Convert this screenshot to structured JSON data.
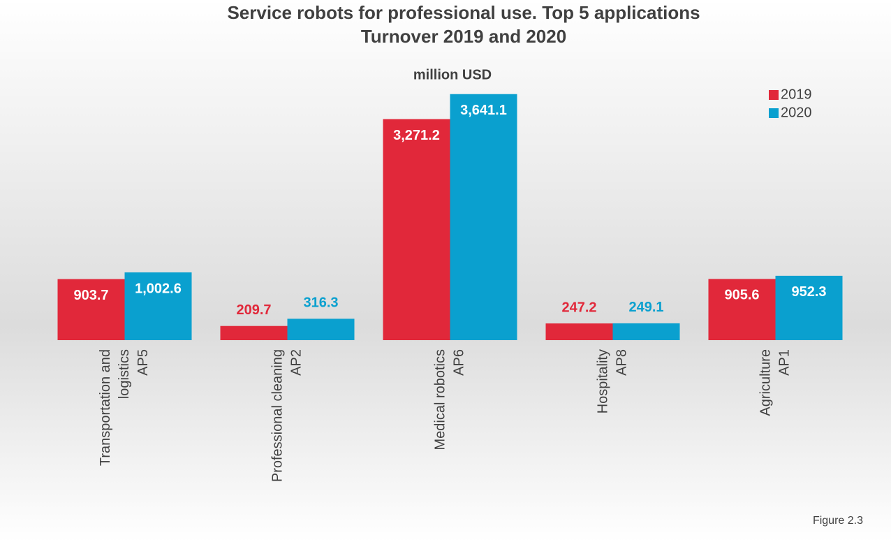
{
  "chart_data": {
    "type": "bar",
    "title": [
      "Service robots for professional use. Top 5 applications",
      "Turnover 2019 and 2020"
    ],
    "y_label": "million USD",
    "note": "Figure 2.3",
    "categories": [
      [
        "Transportation and",
        "logistics",
        "AP5"
      ],
      [
        "Professional cleaning",
        "AP2"
      ],
      [
        "Medical robotics",
        "AP6"
      ],
      [
        "Hospitality",
        "AP8"
      ],
      [
        "Agriculture",
        "AP1"
      ]
    ],
    "series": [
      {
        "name": "2019",
        "color": "#e1283a",
        "values": [
          903.7,
          209.7,
          3271.2,
          247.2,
          905.6
        ],
        "value_labels": [
          "903.7",
          "209.7",
          "3,271.2",
          "247.2",
          "905.6"
        ]
      },
      {
        "name": "2020",
        "color": "#0aa0cf",
        "values": [
          1002.6,
          316.3,
          3641.1,
          249.1,
          952.3
        ],
        "value_labels": [
          "1,002.6",
          "316.3",
          "3,641.1",
          "249.1",
          "952.3"
        ]
      }
    ],
    "ylim": [
      0,
      4000
    ],
    "legend": "upper right"
  }
}
